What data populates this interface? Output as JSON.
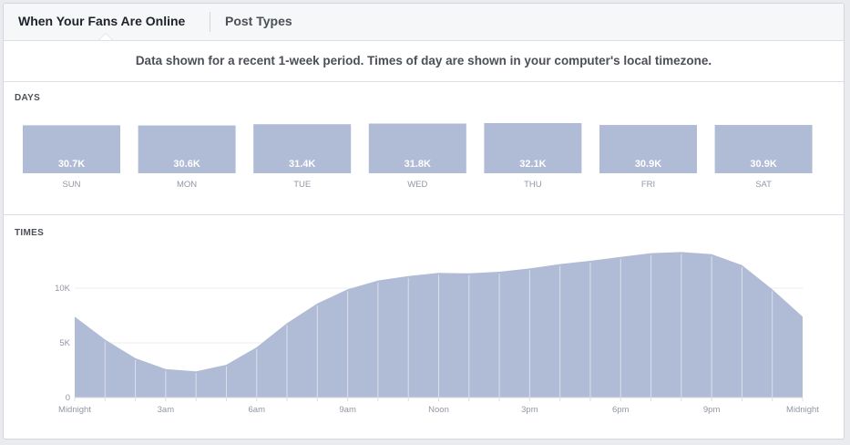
{
  "tabs": [
    {
      "label": "When Your Fans Are Online",
      "active": true
    },
    {
      "label": "Post Types",
      "active": false
    }
  ],
  "notice": "Data shown for a recent 1-week period. Times of day are shown in your computer's local timezone.",
  "sections": {
    "days_label": "DAYS",
    "times_label": "TIMES"
  },
  "colors": {
    "fill": "#b0bbd6",
    "axis_text": "#9197a3",
    "value_text": "#ffffff"
  },
  "chart_data": [
    {
      "type": "bar",
      "name": "days",
      "categories": [
        "SUN",
        "MON",
        "TUE",
        "WED",
        "THU",
        "FRI",
        "SAT"
      ],
      "values": [
        30700,
        30600,
        31400,
        31800,
        32100,
        30900,
        30900
      ],
      "value_labels": [
        "30.7K",
        "30.6K",
        "31.4K",
        "31.8K",
        "32.1K",
        "30.9K",
        "30.9K"
      ]
    },
    {
      "type": "area",
      "name": "times",
      "x": [
        0,
        1,
        2,
        3,
        4,
        5,
        6,
        7,
        8,
        9,
        10,
        11,
        12,
        13,
        14,
        15,
        16,
        17,
        18,
        19,
        20,
        21,
        22,
        23,
        24
      ],
      "y": [
        7400,
        5300,
        3600,
        2600,
        2400,
        3000,
        4600,
        6800,
        8600,
        9900,
        10700,
        11100,
        11400,
        11350,
        11500,
        11800,
        12200,
        12500,
        12850,
        13200,
        13300,
        13100,
        12100,
        9900,
        7400
      ],
      "ylim": [
        0,
        13500
      ],
      "yticks": [
        0,
        5000,
        10000
      ],
      "ytick_labels": [
        "0",
        "5K",
        "10K"
      ],
      "xtick_labels": [
        {
          "x": 0,
          "label": "Midnight"
        },
        {
          "x": 3,
          "label": "3am"
        },
        {
          "x": 6,
          "label": "6am"
        },
        {
          "x": 9,
          "label": "9am"
        },
        {
          "x": 12,
          "label": "Noon"
        },
        {
          "x": 15,
          "label": "3pm"
        },
        {
          "x": 18,
          "label": "6pm"
        },
        {
          "x": 21,
          "label": "9pm"
        },
        {
          "x": 24,
          "label": "Midnight"
        }
      ],
      "grid": true
    }
  ]
}
